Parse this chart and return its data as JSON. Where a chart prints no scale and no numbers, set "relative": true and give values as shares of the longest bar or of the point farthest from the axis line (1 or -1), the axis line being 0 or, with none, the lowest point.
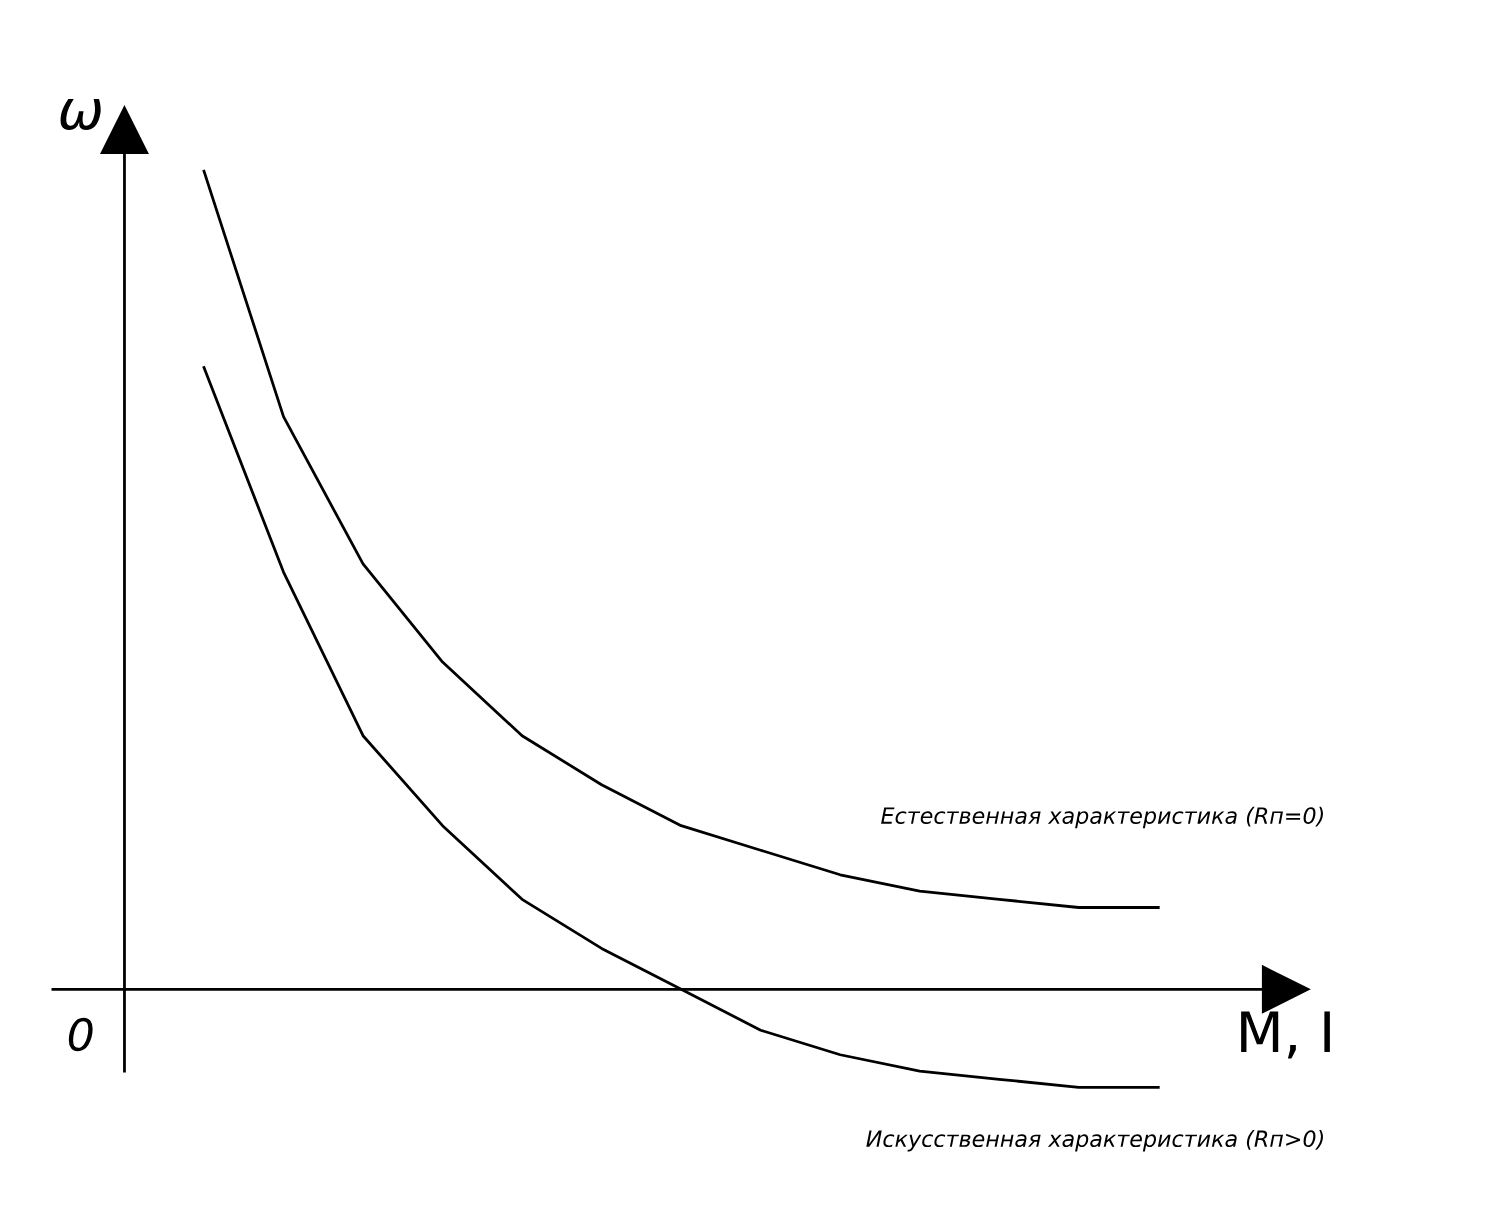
{
  "chart_data": {
    "type": "line",
    "relative": true,
    "xlabel": "M, I",
    "ylabel": "ω",
    "annotations": [
      "0"
    ],
    "categories": [
      null,
      null,
      null,
      null,
      null,
      null,
      null,
      null,
      null,
      null,
      null,
      null,
      null
    ],
    "series": [
      {
        "name": "Естественная характеристика (Rп=0)",
        "color": "#000000",
        "values": [
          1.0,
          0.7,
          0.52,
          0.4,
          0.31,
          0.25,
          0.2,
          0.17,
          0.14,
          0.12,
          0.11,
          0.1,
          0.1
        ]
      },
      {
        "name": "Искусственная характеристика (Rп>0)",
        "color": "#000000",
        "values": [
          0.76,
          0.51,
          0.31,
          0.2,
          0.11,
          0.05,
          0.0,
          -0.05,
          -0.08,
          -0.1,
          -0.11,
          -0.12,
          -0.12
        ]
      }
    ],
    "marker": "none",
    "line_style": "solid",
    "grid": false,
    "legend": false
  }
}
